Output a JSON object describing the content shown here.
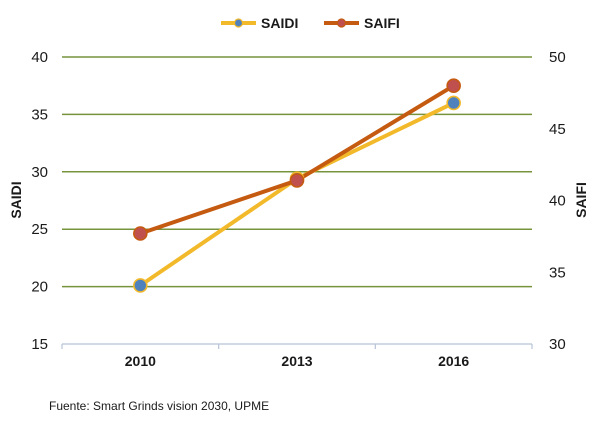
{
  "chart_data": {
    "type": "line",
    "categories": [
      "2010",
      "2013",
      "2016"
    ],
    "series": [
      {
        "name": "SAIDI",
        "axis": "left",
        "values": [
          20.1,
          29.4,
          36.0
        ],
        "line_color": "#f2b92b",
        "marker_color": "#4f81bd"
      },
      {
        "name": "SAIFI",
        "axis": "right",
        "values": [
          37.7,
          41.4,
          48.0
        ],
        "line_color": "#c55a11",
        "marker_color": "#c0504d"
      }
    ],
    "ylabel_left": "SAIDI",
    "ylabel_right": "SAIFI",
    "ylim_left": [
      15,
      40
    ],
    "ylim_right": [
      30,
      50
    ],
    "yticks_left": [
      "15",
      "20",
      "25",
      "30",
      "35",
      "40"
    ],
    "yticks_right": [
      "30",
      "35",
      "40",
      "45",
      "50"
    ],
    "grid": true,
    "grid_color": "#77933c",
    "legend_position": "top-center"
  },
  "footnote": "Fuente: Smart Grinds vision 2030, UPME"
}
